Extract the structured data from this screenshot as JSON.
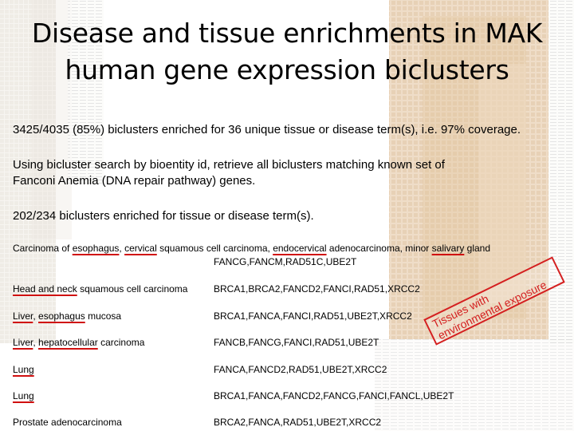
{
  "title": {
    "line1": "Disease and tissue enrichments in MAK",
    "line2": "human gene expression biclusters"
  },
  "body": {
    "p1": "3425/4035 (85%) biclusters enriched for 36 unique tissue or disease term(s), i.e. 97% coverage.",
    "p2_line1": "Using bicluster search by bioentity id, retrieve all biclusters matching known set of",
    "p2_line2": "Fanconi Anemia (DNA repair pathway) genes.",
    "p3": "202/234 biclusters enriched for tissue or disease term(s)."
  },
  "rows": [
    {
      "term_parts": [
        "Carcinoma of ",
        "esophagus",
        ", ",
        "cervical",
        " squamous cell carcinoma, ",
        "endocervical",
        " adenocarcinoma, minor ",
        "salivary",
        " gland"
      ],
      "genes": "FANCG,FANCM,RAD51C,UBE2T"
    },
    {
      "term_parts": [
        "Head and neck",
        " squamous cell carcinoma"
      ],
      "genes": "BRCA1,BRCA2,FANCD2,FANCI,RAD51,XRCC2"
    },
    {
      "term_parts": [
        "Liver",
        ", ",
        "esophagus",
        " mucosa"
      ],
      "genes": "BRCA1,FANCA,FANCI,RAD51,UBE2T,XRCC2"
    },
    {
      "term_parts": [
        "Liver",
        ", ",
        "hepatocellular",
        " carcinoma"
      ],
      "genes": "FANCB,FANCG,FANCI,RAD51,UBE2T"
    },
    {
      "term_parts": [
        "Lung"
      ],
      "genes": "FANCA,FANCD2,RAD51,UBE2T,XRCC2"
    },
    {
      "term_parts": [
        "Lung"
      ],
      "genes": "BRCA1,FANCA,FANCD2,FANCG,FANCI,FANCL,UBE2T"
    },
    {
      "term_parts": [
        "Prostate adenocarcinoma"
      ],
      "genes": "BRCA2,FANCA,RAD51,UBE2T,XRCC2"
    }
  ],
  "callout": {
    "line1": "Tissues with",
    "line2": "environmental exposure"
  },
  "colors": {
    "underline": "#d01010",
    "callout": "#d42020",
    "heatmap_warm": "#e6c8a4",
    "heatmap_light": "#f2e6d4"
  }
}
